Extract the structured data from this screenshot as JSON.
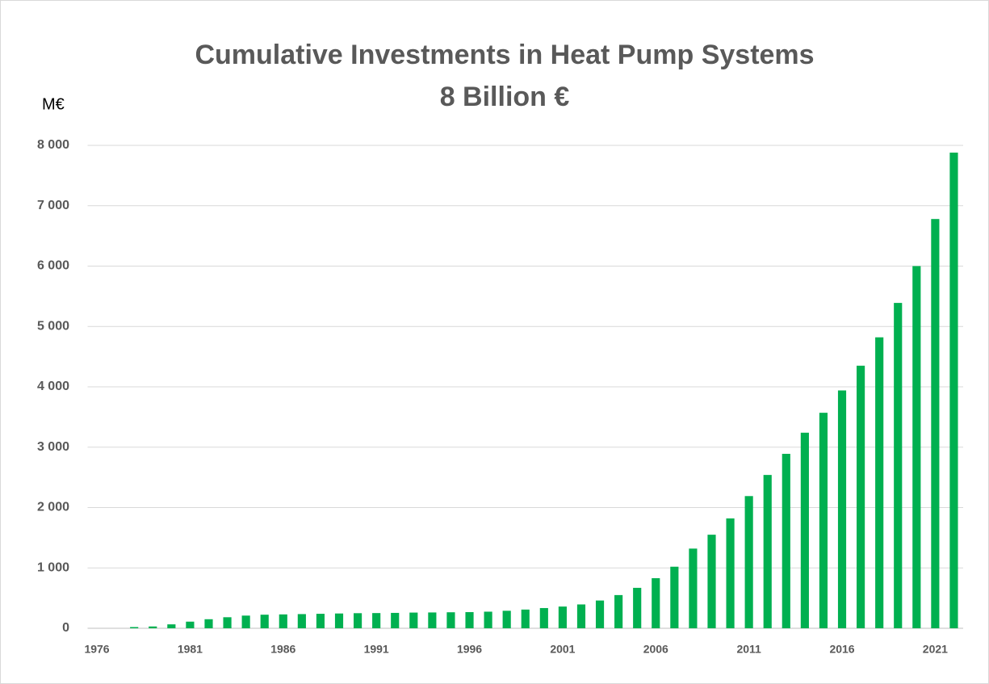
{
  "chart_data": {
    "type": "bar",
    "title": "Cumulative Investments in Heat Pump Systems",
    "subtitle": "8 Billion €",
    "y_label": "M€",
    "categories": [
      "1976",
      null,
      null,
      null,
      null,
      "1981",
      null,
      null,
      null,
      null,
      "1986",
      null,
      null,
      null,
      null,
      "1991",
      null,
      null,
      null,
      null,
      "1996",
      null,
      null,
      null,
      null,
      "2001",
      null,
      null,
      null,
      null,
      "2006",
      null,
      null,
      null,
      null,
      "2011",
      null,
      null,
      null,
      null,
      "2016",
      null,
      null,
      null,
      null,
      "2021",
      null
    ],
    "values": [
      0,
      0,
      20,
      30,
      65,
      110,
      150,
      183,
      210,
      225,
      230,
      235,
      240,
      245,
      250,
      252,
      255,
      260,
      262,
      265,
      268,
      275,
      290,
      310,
      335,
      360,
      395,
      460,
      550,
      670,
      830,
      1020,
      1320,
      1550,
      1820,
      2190,
      2540,
      2890,
      3240,
      3570,
      3940,
      4350,
      4820,
      5390,
      6000,
      6780,
      7880
    ],
    "color": "#00b050",
    "ylim": [
      0,
      8000
    ],
    "yticks": [
      0,
      {
        "value": 1000,
        "label": "1 000"
      },
      {
        "value": 2000,
        "label": "2 000"
      },
      {
        "value": 3000,
        "label": "3 000"
      },
      {
        "value": 4000,
        "label": "4 000"
      },
      {
        "value": 5000,
        "label": "5 000"
      },
      {
        "value": 6000,
        "label": "6 000"
      },
      {
        "value": 7000,
        "label": "7 000"
      },
      {
        "value": 8000,
        "label": "8 000"
      }
    ],
    "grid": true
  }
}
